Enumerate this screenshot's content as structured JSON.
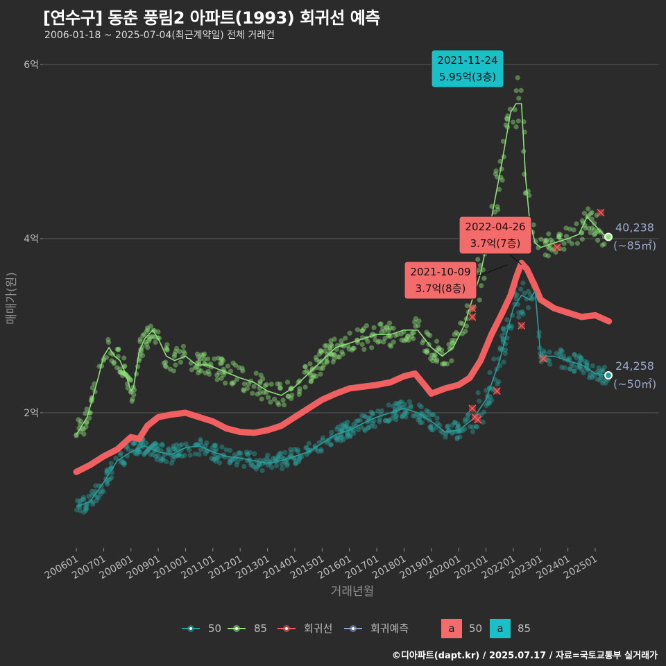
{
  "header": {
    "title": "[연수구] 동춘 풍림2 아파트(1993) 회귀선 예측",
    "subtitle": "2006-01-18 ~ 2025-07-04(최근계약일) 전체 거래건"
  },
  "footer": {
    "credit": "©디아파트(dapt.kr) / 2025.07.17 / 자료=국토교통부 실거래가"
  },
  "colors": {
    "s50": "#2a9d9a",
    "s85": "#8ee07a",
    "reg": "#f06060",
    "pred": "#8aa0cc",
    "ann_teal": "#19c0c8",
    "ann_red": "#f36b6b",
    "grid": "#5a5a5a"
  },
  "chart_data": {
    "type": "scatter",
    "x_axis_title": "거래년월",
    "y_axis_title": "매매가(원)",
    "y_range": [
      0.8,
      6.3
    ],
    "y_ticks": [
      {
        "value": 2,
        "label": "2억"
      },
      {
        "value": 4,
        "label": "4억"
      },
      {
        "value": 6,
        "label": "6억"
      }
    ],
    "x_ticks": [
      "200601",
      "200701",
      "200801",
      "200901",
      "201001",
      "201101",
      "201201",
      "201301",
      "201401",
      "201501",
      "201601",
      "201701",
      "201801",
      "201901",
      "202001",
      "202101",
      "202201",
      "202301",
      "202401",
      "202501"
    ],
    "x_range": [
      2005.4,
      2025.95
    ],
    "series": [
      {
        "name": "85",
        "key": "s85",
        "trend": [
          [
            2006.0,
            1.75
          ],
          [
            2006.4,
            1.95
          ],
          [
            2006.8,
            2.4
          ],
          [
            2007.0,
            2.65
          ],
          [
            2007.2,
            2.75
          ],
          [
            2007.4,
            2.65
          ],
          [
            2007.6,
            2.6
          ],
          [
            2007.8,
            2.45
          ],
          [
            2008.0,
            2.25
          ],
          [
            2008.1,
            2.3
          ],
          [
            2008.3,
            2.7
          ],
          [
            2008.5,
            2.85
          ],
          [
            2008.8,
            2.95
          ],
          [
            2009.0,
            2.85
          ],
          [
            2009.3,
            2.65
          ],
          [
            2009.6,
            2.6
          ],
          [
            2010.0,
            2.65
          ],
          [
            2010.4,
            2.55
          ],
          [
            2010.8,
            2.55
          ],
          [
            2011.2,
            2.5
          ],
          [
            2011.6,
            2.45
          ],
          [
            2012.0,
            2.4
          ],
          [
            2012.5,
            2.35
          ],
          [
            2013.0,
            2.25
          ],
          [
            2013.5,
            2.2
          ],
          [
            2014.0,
            2.3
          ],
          [
            2014.5,
            2.45
          ],
          [
            2015.0,
            2.6
          ],
          [
            2015.5,
            2.75
          ],
          [
            2016.0,
            2.8
          ],
          [
            2016.5,
            2.85
          ],
          [
            2017.0,
            2.9
          ],
          [
            2017.5,
            2.9
          ],
          [
            2018.0,
            2.95
          ],
          [
            2018.5,
            2.95
          ],
          [
            2019.0,
            2.75
          ],
          [
            2019.4,
            2.65
          ],
          [
            2019.8,
            2.75
          ],
          [
            2020.2,
            3.0
          ],
          [
            2020.5,
            3.3
          ],
          [
            2020.8,
            3.6
          ],
          [
            2021.0,
            3.9
          ],
          [
            2021.3,
            4.4
          ],
          [
            2021.6,
            4.9
          ],
          [
            2021.9,
            5.45
          ],
          [
            2022.1,
            5.55
          ],
          [
            2022.3,
            5.55
          ],
          [
            2022.45,
            4.7
          ],
          [
            2022.6,
            4.2
          ],
          [
            2022.8,
            3.95
          ],
          [
            2023.0,
            3.9
          ],
          [
            2023.5,
            3.95
          ],
          [
            2024.0,
            4.0
          ],
          [
            2024.4,
            4.05
          ],
          [
            2024.7,
            4.25
          ],
          [
            2025.0,
            4.15
          ],
          [
            2025.3,
            4.05
          ],
          [
            2025.5,
            4.02
          ]
        ],
        "last_value": "40,238",
        "last_label": "(~85㎡)",
        "last_y": 4.02
      },
      {
        "name": "50",
        "key": "s50",
        "trend": [
          [
            2006.0,
            0.92
          ],
          [
            2006.5,
            0.98
          ],
          [
            2007.0,
            1.2
          ],
          [
            2007.5,
            1.45
          ],
          [
            2008.0,
            1.55
          ],
          [
            2008.5,
            1.62
          ],
          [
            2009.0,
            1.55
          ],
          [
            2009.5,
            1.52
          ],
          [
            2010.0,
            1.6
          ],
          [
            2010.5,
            1.62
          ],
          [
            2011.0,
            1.55
          ],
          [
            2011.5,
            1.5
          ],
          [
            2012.0,
            1.48
          ],
          [
            2012.5,
            1.45
          ],
          [
            2013.0,
            1.42
          ],
          [
            2013.5,
            1.45
          ],
          [
            2014.0,
            1.5
          ],
          [
            2014.5,
            1.55
          ],
          [
            2015.0,
            1.65
          ],
          [
            2015.5,
            1.75
          ],
          [
            2016.0,
            1.8
          ],
          [
            2016.5,
            1.88
          ],
          [
            2017.0,
            1.95
          ],
          [
            2017.5,
            2.0
          ],
          [
            2018.0,
            2.05
          ],
          [
            2018.5,
            2.0
          ],
          [
            2019.0,
            1.9
          ],
          [
            2019.5,
            1.78
          ],
          [
            2020.0,
            1.8
          ],
          [
            2020.5,
            1.92
          ],
          [
            2021.0,
            2.15
          ],
          [
            2021.5,
            2.6
          ],
          [
            2022.0,
            3.2
          ],
          [
            2022.3,
            3.35
          ],
          [
            2022.6,
            3.3
          ],
          [
            2022.8,
            3.4
          ],
          [
            2023.0,
            2.65
          ],
          [
            2023.5,
            2.65
          ],
          [
            2024.0,
            2.6
          ],
          [
            2024.5,
            2.55
          ],
          [
            2025.0,
            2.45
          ],
          [
            2025.5,
            2.43
          ]
        ],
        "last_value": "24,258",
        "last_label": "(~50㎡)",
        "last_y": 2.43
      }
    ],
    "regression": {
      "name": "회귀선",
      "points": [
        [
          2006.0,
          1.32
        ],
        [
          2006.5,
          1.4
        ],
        [
          2007.0,
          1.5
        ],
        [
          2007.5,
          1.58
        ],
        [
          2008.0,
          1.72
        ],
        [
          2008.3,
          1.7
        ],
        [
          2008.6,
          1.85
        ],
        [
          2009.0,
          1.95
        ],
        [
          2009.5,
          1.98
        ],
        [
          2010.0,
          2.0
        ],
        [
          2010.5,
          1.95
        ],
        [
          2011.0,
          1.9
        ],
        [
          2011.5,
          1.82
        ],
        [
          2012.0,
          1.78
        ],
        [
          2012.5,
          1.77
        ],
        [
          2013.0,
          1.8
        ],
        [
          2013.5,
          1.85
        ],
        [
          2014.0,
          1.95
        ],
        [
          2014.5,
          2.05
        ],
        [
          2015.0,
          2.15
        ],
        [
          2015.5,
          2.22
        ],
        [
          2016.0,
          2.28
        ],
        [
          2016.5,
          2.3
        ],
        [
          2017.0,
          2.32
        ],
        [
          2017.5,
          2.35
        ],
        [
          2018.0,
          2.42
        ],
        [
          2018.4,
          2.45
        ],
        [
          2018.8,
          2.3
        ],
        [
          2019.0,
          2.22
        ],
        [
          2019.5,
          2.28
        ],
        [
          2020.0,
          2.32
        ],
        [
          2020.4,
          2.4
        ],
        [
          2020.8,
          2.6
        ],
        [
          2021.2,
          2.9
        ],
        [
          2021.6,
          3.15
        ],
        [
          2021.9,
          3.35
        ],
        [
          2022.1,
          3.55
        ],
        [
          2022.3,
          3.72
        ],
        [
          2022.5,
          3.65
        ],
        [
          2022.8,
          3.45
        ],
        [
          2023.0,
          3.3
        ],
        [
          2023.5,
          3.2
        ],
        [
          2024.0,
          3.15
        ],
        [
          2024.5,
          3.1
        ],
        [
          2025.0,
          3.12
        ],
        [
          2025.5,
          3.05
        ]
      ]
    },
    "crosses": [
      [
        2020.5,
        3.2
      ],
      [
        2020.5,
        3.1
      ],
      [
        2020.5,
        2.05
      ],
      [
        2020.6,
        1.95
      ],
      [
        2020.7,
        1.92
      ],
      [
        2022.3,
        3.0
      ],
      [
        2023.1,
        2.62
      ],
      [
        2023.6,
        3.9
      ],
      [
        2025.2,
        4.3
      ],
      [
        2021.4,
        2.25
      ]
    ],
    "annotations": [
      {
        "date": "2021-11-24",
        "value": "5.95억(3층)",
        "x": 2021.95,
        "y": 5.95,
        "style": "teal"
      },
      {
        "date": "2022-04-26",
        "value": "3.7억(7층)",
        "x": 2022.3,
        "y": 3.7,
        "style": "red"
      },
      {
        "date": "2021-10-09",
        "value": "3.7억(8층)",
        "x": 2021.78,
        "y": 3.7,
        "style": "red"
      }
    ],
    "legend": {
      "position": "bottom",
      "items": [
        {
          "label": "50",
          "key": "s50"
        },
        {
          "label": "85",
          "key": "s85"
        },
        {
          "label": "회귀선",
          "key": "reg"
        },
        {
          "label": "회귀예측",
          "key": "pred"
        }
      ],
      "fill_items": [
        {
          "glyph": "a",
          "label": "50",
          "key": "ann_red"
        },
        {
          "glyph": "a",
          "label": "85",
          "key": "ann_teal"
        }
      ]
    },
    "grid": true
  }
}
